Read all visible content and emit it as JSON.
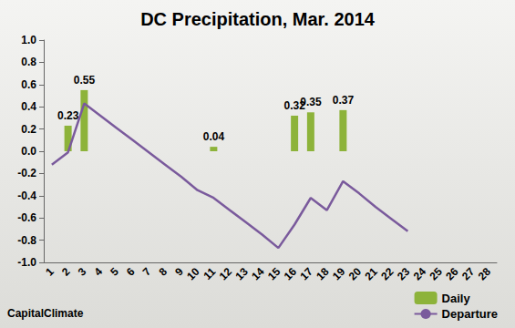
{
  "chart_data": {
    "type": "bar",
    "title": "DC Precipitation, Mar. 2014",
    "annotations": [
      "CapitalClimate"
    ],
    "categories": [
      "1",
      "2",
      "3",
      "4",
      "5",
      "6",
      "7",
      "8",
      "9",
      "10",
      "11",
      "12",
      "13",
      "14",
      "15",
      "16",
      "17",
      "18",
      "19",
      "20",
      "21",
      "22",
      "23",
      "24",
      "25",
      "26",
      "27",
      "28"
    ],
    "series": [
      {
        "name": "Daily",
        "type": "bar",
        "color": "#8db33a",
        "data_labels": true,
        "values": [
          null,
          0.23,
          0.55,
          null,
          null,
          null,
          null,
          null,
          null,
          null,
          0.04,
          null,
          null,
          null,
          null,
          0.32,
          0.35,
          null,
          0.37,
          null,
          null,
          null,
          null,
          null,
          null,
          null,
          null,
          null
        ]
      },
      {
        "name": "Departure",
        "type": "line",
        "color": "#7a5a9c",
        "marker": "none",
        "line_style": "solid",
        "values": [
          -0.12,
          -0.01,
          0.43,
          0.32,
          0.21,
          0.1,
          -0.01,
          -0.12,
          -0.23,
          -0.35,
          -0.42,
          -0.53,
          -0.64,
          -0.75,
          -0.87,
          -0.66,
          -0.42,
          -0.53,
          -0.27,
          -0.38,
          -0.5,
          -0.61,
          -0.72,
          null,
          null,
          null,
          null,
          null
        ]
      }
    ],
    "ylim": [
      -1.0,
      1.0
    ],
    "yticks": [
      {
        "value": -1.0,
        "label": "-1.0"
      },
      -0.8,
      -0.6,
      -0.4,
      -0.2,
      {
        "value": 0.0,
        "label": "0.0"
      },
      0.2,
      0.4,
      0.6,
      0.8,
      {
        "value": 1.0,
        "label": "1.0"
      }
    ],
    "grid": false,
    "legend": "lower right"
  }
}
